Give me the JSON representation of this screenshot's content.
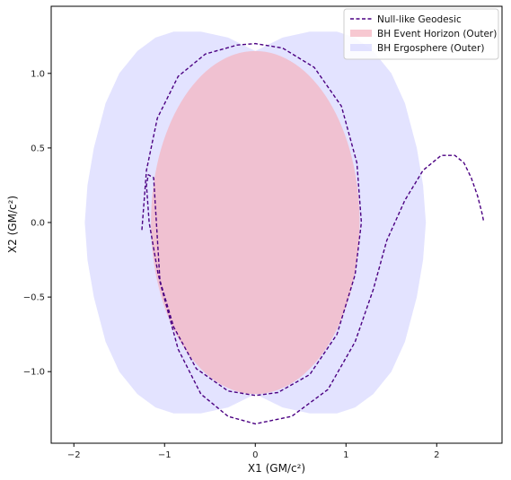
{
  "chart_data": {
    "type": "line",
    "title": "",
    "xlabel": "X1 (GM/c²)",
    "ylabel": "X2 (GM/c²)",
    "xlim": [
      -2.25,
      2.72
    ],
    "ylim": [
      -1.48,
      1.45
    ],
    "x_ticks": [
      -2,
      -1,
      0,
      1,
      2
    ],
    "x_tick_labels": [
      "−2",
      "−1",
      "0",
      "1",
      "2"
    ],
    "y_ticks": [
      -1.0,
      -0.5,
      0.0,
      0.5,
      1.0
    ],
    "y_tick_labels": [
      "−1.0",
      "−0.5",
      "0.0",
      "0.5",
      "1.0"
    ],
    "grid": false,
    "legend_position": "top-right",
    "series": [
      {
        "name": "Null-like Geodesic",
        "kind": "line",
        "style": "dashed",
        "color": "#4b0082",
        "x": [
          -1.25,
          -1.2,
          -1.08,
          -0.85,
          -0.55,
          -0.2,
          0.0,
          0.3,
          0.65,
          0.95,
          1.12,
          1.17,
          1.1,
          0.9,
          0.6,
          0.25,
          0.0,
          -0.3,
          -0.65,
          -0.9,
          -1.07,
          -1.17,
          -1.2,
          -1.18,
          -1.12,
          -1.05,
          -0.85,
          -0.6,
          -0.3,
          0.0,
          0.4,
          0.8,
          1.1,
          1.3,
          1.45,
          1.65,
          1.85,
          2.05,
          2.2,
          2.3,
          2.38,
          2.45,
          2.5,
          2.52
        ],
        "y": [
          -0.05,
          0.35,
          0.7,
          0.98,
          1.13,
          1.19,
          1.2,
          1.17,
          1.04,
          0.78,
          0.4,
          0.0,
          -0.35,
          -0.75,
          -1.02,
          -1.14,
          -1.16,
          -1.13,
          -0.98,
          -0.7,
          -0.35,
          0.0,
          0.25,
          0.32,
          0.3,
          -0.4,
          -0.85,
          -1.15,
          -1.3,
          -1.35,
          -1.3,
          -1.12,
          -0.8,
          -0.45,
          -0.12,
          0.15,
          0.35,
          0.45,
          0.45,
          0.4,
          0.3,
          0.18,
          0.06,
          0.0
        ]
      },
      {
        "name": "BH Event Horizon (Outer)",
        "kind": "fill",
        "color": "#f4b6c2",
        "opacity": 0.75,
        "center": [
          0.0,
          0.0
        ],
        "semi_axis_x": 1.15,
        "semi_axis_y": 1.15
      },
      {
        "name": "BH Ergosphere (Outer)",
        "kind": "fill",
        "color": "#ccccff",
        "opacity": 0.55,
        "x": [
          0.0,
          -0.3,
          -0.6,
          -0.9,
          -1.1,
          -1.3,
          -1.5,
          -1.65,
          -1.78,
          -1.85,
          -1.88,
          -1.85,
          -1.78,
          -1.65,
          -1.5,
          -1.3,
          -1.1,
          -0.9,
          -0.6,
          -0.3,
          0.0,
          0.3,
          0.6,
          0.9,
          1.1,
          1.3,
          1.5,
          1.65,
          1.78,
          1.85,
          1.88,
          1.85,
          1.78,
          1.65,
          1.5,
          1.3,
          1.1,
          0.9,
          0.6,
          0.3
        ],
        "y": [
          1.15,
          1.24,
          1.28,
          1.28,
          1.24,
          1.15,
          1.0,
          0.8,
          0.5,
          0.25,
          0.0,
          -0.25,
          -0.5,
          -0.8,
          -1.0,
          -1.15,
          -1.24,
          -1.28,
          -1.28,
          -1.24,
          -1.15,
          -1.24,
          -1.28,
          -1.28,
          -1.24,
          -1.15,
          -1.0,
          -0.8,
          -0.5,
          -0.25,
          0.0,
          0.25,
          0.5,
          0.8,
          1.0,
          1.15,
          1.24,
          1.28,
          1.28,
          1.24
        ]
      }
    ]
  }
}
